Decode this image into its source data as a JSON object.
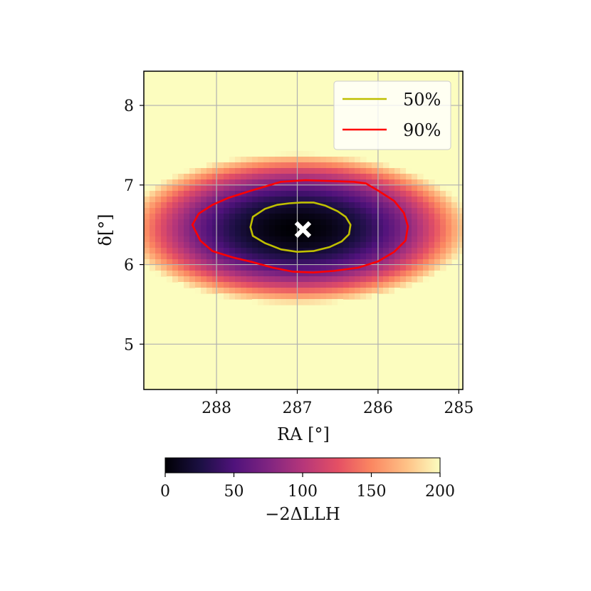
{
  "chart_data": {
    "type": "heatmap",
    "title": "",
    "xlabel": "RA [°]",
    "ylabel": "δ[°]",
    "xlim": [
      288.9,
      284.95
    ],
    "ylim": [
      4.43,
      8.43
    ],
    "x_inverted": true,
    "xticks": [
      288,
      287,
      286,
      285
    ],
    "xtick_labels": [
      "288",
      "287",
      "286",
      "285"
    ],
    "yticks": [
      5,
      6,
      7,
      8
    ],
    "ytick_labels": [
      "5",
      "6",
      "7",
      "8"
    ],
    "grid": true,
    "colormap": "magma",
    "colorbar": {
      "label": "−2ΔLLH",
      "range": [
        0,
        200
      ],
      "ticks": [
        0,
        50,
        100,
        150,
        200
      ],
      "tick_labels": [
        "0",
        "50",
        "100",
        "150",
        "200"
      ],
      "orientation": "horizontal"
    },
    "best_fit": {
      "ra": 286.93,
      "dec": 6.44,
      "marker": "x",
      "color": "#ffffff"
    },
    "contours": [
      {
        "name": "50%",
        "color": "#bfbf00",
        "points": [
          [
            287.58,
            6.47
          ],
          [
            287.55,
            6.6
          ],
          [
            287.4,
            6.7
          ],
          [
            287.25,
            6.75
          ],
          [
            287.1,
            6.77
          ],
          [
            286.95,
            6.78
          ],
          [
            286.8,
            6.78
          ],
          [
            286.65,
            6.74
          ],
          [
            286.5,
            6.67
          ],
          [
            286.4,
            6.6
          ],
          [
            286.34,
            6.5
          ],
          [
            286.36,
            6.38
          ],
          [
            286.45,
            6.29
          ],
          [
            286.6,
            6.22
          ],
          [
            286.8,
            6.17
          ],
          [
            287.0,
            6.16
          ],
          [
            287.2,
            6.19
          ],
          [
            287.4,
            6.27
          ],
          [
            287.55,
            6.36
          ],
          [
            287.58,
            6.47
          ]
        ]
      },
      {
        "name": "90%",
        "color": "#ff0000",
        "points": [
          [
            288.3,
            6.5
          ],
          [
            288.22,
            6.64
          ],
          [
            288.05,
            6.75
          ],
          [
            287.85,
            6.84
          ],
          [
            287.6,
            6.92
          ],
          [
            287.4,
            6.98
          ],
          [
            287.2,
            7.04
          ],
          [
            286.9,
            7.06
          ],
          [
            286.6,
            7.05
          ],
          [
            286.3,
            7.04
          ],
          [
            286.15,
            7.02
          ],
          [
            286.0,
            6.93
          ],
          [
            285.8,
            6.8
          ],
          [
            285.68,
            6.65
          ],
          [
            285.63,
            6.48
          ],
          [
            285.66,
            6.3
          ],
          [
            285.8,
            6.16
          ],
          [
            286.0,
            6.04
          ],
          [
            286.25,
            5.96
          ],
          [
            286.55,
            5.92
          ],
          [
            286.8,
            5.9
          ],
          [
            287.05,
            5.91
          ],
          [
            287.3,
            5.96
          ],
          [
            287.55,
            6.03
          ],
          [
            287.8,
            6.09
          ],
          [
            288.05,
            6.17
          ],
          [
            288.2,
            6.3
          ],
          [
            288.3,
            6.5
          ]
        ]
      }
    ],
    "legend": {
      "placement": "upper-right",
      "entries": [
        {
          "label": "50%",
          "color": "#bfbf00"
        },
        {
          "label": "90%",
          "color": "#ff0000"
        }
      ]
    }
  }
}
